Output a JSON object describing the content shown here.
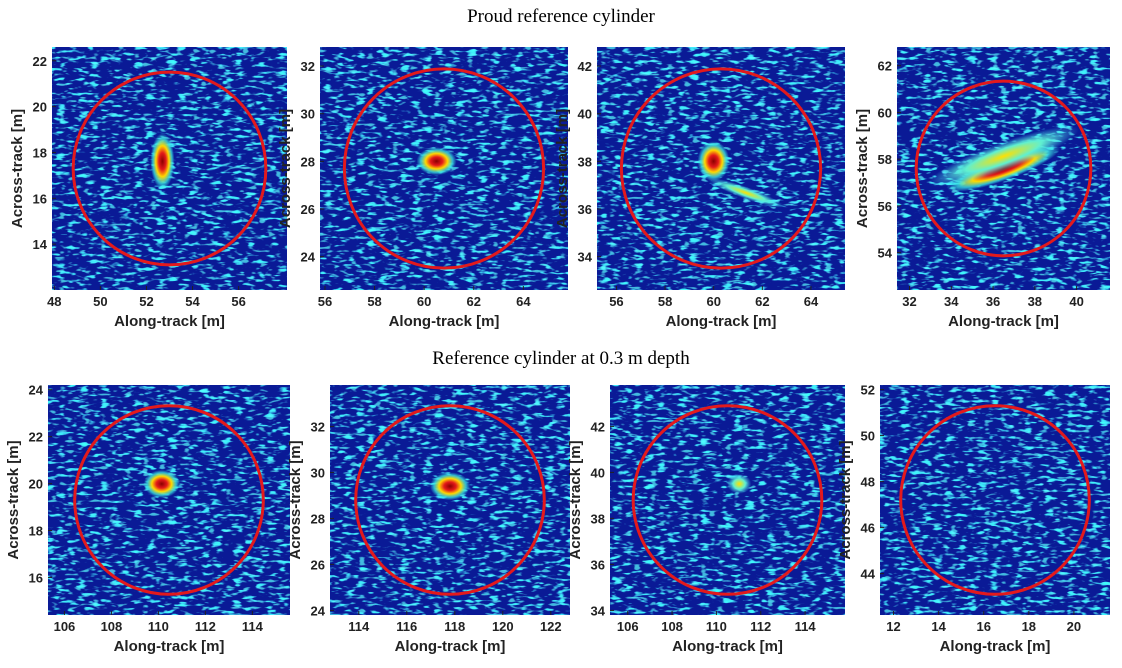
{
  "row_titles": [
    "Proud reference cylinder",
    "Reference cylinder at 0.3 m depth"
  ],
  "chart_data": [
    {
      "type": "heatmap",
      "xlabel": "Along-track [m]",
      "ylabel": "Across-track [m]",
      "xlim": [
        47.9,
        58.1
      ],
      "xticks": [
        48,
        50,
        52,
        54,
        56
      ],
      "ylim": [
        12.0,
        22.6
      ],
      "yticks": [
        14,
        16,
        18,
        20,
        22
      ]
    },
    {
      "type": "heatmap",
      "xlabel": "Along-track [m]",
      "ylabel": "Across-track [m]",
      "xlim": [
        55.8,
        65.8
      ],
      "xticks": [
        56,
        58,
        60,
        62,
        64
      ],
      "ylim": [
        22.6,
        32.8
      ],
      "yticks": [
        24,
        26,
        28,
        30,
        32
      ]
    },
    {
      "type": "heatmap",
      "xlabel": "Along-track [m]",
      "ylabel": "Across-track [m]",
      "xlim": [
        55.2,
        65.4
      ],
      "xticks": [
        56,
        58,
        60,
        62,
        64
      ],
      "ylim": [
        32.6,
        42.8
      ],
      "yticks": [
        34,
        36,
        38,
        40,
        42
      ]
    },
    {
      "type": "heatmap",
      "xlabel": "Along-track [m]",
      "ylabel": "Across-track [m]",
      "xlim": [
        31.4,
        41.6
      ],
      "xticks": [
        32,
        34,
        36,
        38,
        40
      ],
      "ylim": [
        52.4,
        62.8
      ],
      "yticks": [
        54,
        56,
        58,
        60,
        62
      ]
    },
    {
      "type": "heatmap",
      "xlabel": "Along-track [m]",
      "ylabel": "Across-track [m]",
      "xlim": [
        105.3,
        115.6
      ],
      "xticks": [
        106,
        108,
        110,
        112,
        114
      ],
      "ylim": [
        14.4,
        24.2
      ],
      "yticks": [
        16,
        18,
        20,
        22,
        24
      ]
    },
    {
      "type": "heatmap",
      "xlabel": "Along-track [m]",
      "ylabel": "Across-track [m]",
      "xlim": [
        112.8,
        122.8
      ],
      "xticks": [
        114,
        116,
        118,
        120,
        122
      ],
      "ylim": [
        23.8,
        33.8
      ],
      "yticks": [
        24,
        26,
        28,
        30,
        32
      ]
    },
    {
      "type": "heatmap",
      "xlabel": "Along-track [m]",
      "ylabel": "Across-track [m]",
      "xlim": [
        105.2,
        115.8
      ],
      "xticks": [
        106,
        108,
        110,
        112,
        114
      ],
      "ylim": [
        33.8,
        43.8
      ],
      "yticks": [
        34,
        36,
        38,
        40,
        42
      ]
    },
    {
      "type": "heatmap",
      "xlabel": "Along-track [m]",
      "ylabel": "Across-track [m]",
      "xlim": [
        11.4,
        21.6
      ],
      "xticks": [
        12,
        14,
        16,
        18,
        20
      ],
      "ylim": [
        42.2,
        52.2
      ],
      "yticks": [
        44,
        46,
        48,
        50,
        52
      ]
    }
  ]
}
